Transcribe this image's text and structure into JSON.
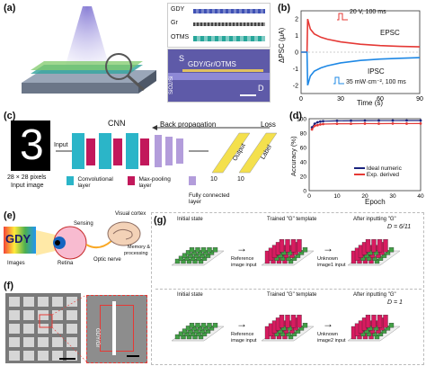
{
  "panels": {
    "a": {
      "label": "(a)",
      "layers": [
        "GDY",
        "Gr",
        "OTMS"
      ],
      "micro_s": "S",
      "micro_d": "D",
      "micro_text": "GDY/Gr/OTMS",
      "substrate": "SiO2/Si"
    },
    "b": {
      "label": "(b)",
      "ylabel": "ΔPSC (μA)",
      "xlabel": "Time (s)",
      "epsc": "EPSC",
      "ipsc": "IPSC",
      "pulse_top": "20 V, 100 ms",
      "pulse_bottom": "35 mW·cm⁻², 100 ms",
      "yticks": [
        "2",
        "1",
        "0",
        "-1",
        "-2"
      ],
      "xticks": [
        "0",
        "30",
        "60",
        "90"
      ]
    },
    "c": {
      "label": "(c)",
      "cnn": "CNN",
      "back_prop": "Back propagation",
      "loss": "Loss",
      "input": "Input",
      "output": "Output",
      "label_word": "Label",
      "digit": "3",
      "pixels": "28 × 28 pixels",
      "input_image": "Input image",
      "ten_a": "10",
      "ten_b": "10",
      "legend": [
        {
          "text": "Convolutional layer",
          "color": "#2bb5c8"
        },
        {
          "text": "Max-pooling layer",
          "color": "#c2185b"
        },
        {
          "text": "Fully connected layer",
          "color": "#b39ddb"
        }
      ]
    },
    "d": {
      "label": "(d)",
      "ylabel": "Accuracy (%)",
      "xlabel": "Epoch",
      "yticks": [
        "100",
        "80",
        "60",
        "40",
        "20",
        "0"
      ],
      "xticks": [
        "0",
        "10",
        "20",
        "30",
        "40"
      ],
      "legend": [
        {
          "text": "Ideal numeric",
          "color": "#1a237e"
        },
        {
          "text": "Exp. derived",
          "color": "#e53935"
        }
      ]
    },
    "e": {
      "label": "(e)",
      "sensing": "Sensing",
      "visual_cortex": "Visual cortex",
      "memory": "Memory &",
      "processing": "processing",
      "optic_nerve": "Optic nerve",
      "images": "Images",
      "retina": "Retina",
      "logo": "GDY"
    },
    "f": {
      "label": "(f)",
      "inset_text": "GDY/Gr"
    },
    "g": {
      "label": "(g)",
      "row1": {
        "initial": "Initial state",
        "trained": "Trained \"G\" template",
        "after": "After inputting \"G\"",
        "ref": "Reference",
        "ref2": "image input",
        "unk": "Unknown",
        "unk2": "image1 input",
        "dval": "D = 6/11"
      },
      "row2": {
        "initial": "Initial state",
        "trained": "Trained \"G\" template",
        "after": "After inputting \"G\"",
        "ref": "Reference",
        "ref2": "image input",
        "unk": "Unknown",
        "unk2": "image2 input",
        "dval": "D = 1"
      },
      "axis": "Weight"
    }
  },
  "chart_data": [
    {
      "type": "line",
      "title": "",
      "xlabel": "Time (s)",
      "ylabel": "ΔPSC (μA)",
      "xlim": [
        0,
        90
      ],
      "ylim": [
        -2.5,
        2.5
      ],
      "series": [
        {
          "name": "EPSC",
          "x": [
            5,
            7,
            10,
            15,
            20,
            30,
            45,
            60,
            75,
            90
          ],
          "values": [
            2.0,
            1.4,
            1.1,
            0.9,
            0.78,
            0.62,
            0.48,
            0.4,
            0.35,
            0.32
          ]
        },
        {
          "name": "IPSC",
          "x": [
            5,
            7,
            10,
            15,
            20,
            30,
            45,
            60,
            75,
            90
          ],
          "values": [
            -2.0,
            -1.45,
            -1.15,
            -0.95,
            -0.82,
            -0.65,
            -0.5,
            -0.42,
            -0.37,
            -0.33
          ]
        }
      ]
    },
    {
      "type": "line",
      "title": "",
      "xlabel": "Epoch",
      "ylabel": "Accuracy (%)",
      "xlim": [
        0,
        40
      ],
      "ylim": [
        0,
        100
      ],
      "series": [
        {
          "name": "Ideal numeric",
          "x": [
            1,
            2,
            3,
            4,
            5,
            10,
            15,
            20,
            25,
            30,
            35,
            40
          ],
          "values": [
            88,
            93,
            95,
            96,
            96.5,
            97,
            97.2,
            97.3,
            97.4,
            97.4,
            97.5,
            97.5
          ]
        },
        {
          "name": "Exp. derived",
          "x": [
            1,
            2,
            3,
            4,
            5,
            10,
            15,
            20,
            25,
            30,
            35,
            40
          ],
          "values": [
            85,
            90,
            91,
            92,
            92.5,
            93,
            93,
            93.2,
            93.1,
            93.3,
            93.2,
            93.3
          ]
        }
      ]
    }
  ]
}
